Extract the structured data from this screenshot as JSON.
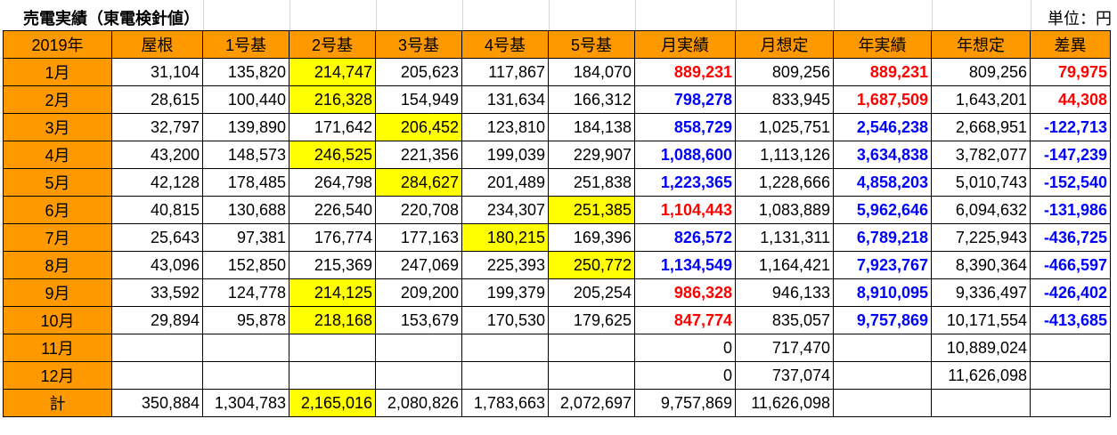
{
  "title": "売電実績（東電検針値）",
  "unit_label": "単位：円",
  "colors": {
    "header_bg": "#ff9900",
    "highlight": "#ffff00",
    "positive": "#ff0000",
    "negative": "#0000ff"
  },
  "columns": [
    "2019年",
    "屋根",
    "1号基",
    "2号基",
    "3号基",
    "4号基",
    "5号基",
    "月実績",
    "月想定",
    "年実績",
    "年想定",
    "差異"
  ],
  "rows": [
    {
      "month": "1月",
      "cells": [
        "31,104",
        "135,820",
        "214,747",
        "205,623",
        "117,867",
        "184,070",
        "889,231",
        "809,256",
        "889,231",
        "809,256",
        "79,975"
      ],
      "hl": 2,
      "c": [
        "red",
        "red",
        "red"
      ]
    },
    {
      "month": "2月",
      "cells": [
        "28,615",
        "100,440",
        "216,328",
        "154,949",
        "131,634",
        "166,312",
        "798,278",
        "833,945",
        "1,687,509",
        "1,643,201",
        "44,308"
      ],
      "hl": 2,
      "c": [
        "blue",
        "red",
        "red"
      ]
    },
    {
      "month": "3月",
      "cells": [
        "32,797",
        "139,890",
        "171,642",
        "206,452",
        "123,810",
        "184,138",
        "858,729",
        "1,025,751",
        "2,546,238",
        "2,668,951",
        "-122,713"
      ],
      "hl": 3,
      "c": [
        "blue",
        "blue",
        "blue"
      ]
    },
    {
      "month": "4月",
      "cells": [
        "43,200",
        "148,573",
        "246,525",
        "221,356",
        "199,039",
        "229,907",
        "1,088,600",
        "1,113,126",
        "3,634,838",
        "3,782,077",
        "-147,239"
      ],
      "hl": 2,
      "c": [
        "blue",
        "blue",
        "blue"
      ]
    },
    {
      "month": "5月",
      "cells": [
        "42,128",
        "178,485",
        "264,798",
        "284,627",
        "201,489",
        "251,838",
        "1,223,365",
        "1,228,666",
        "4,858,203",
        "5,010,743",
        "-152,540"
      ],
      "hl": 3,
      "c": [
        "blue",
        "blue",
        "blue"
      ]
    },
    {
      "month": "6月",
      "cells": [
        "40,815",
        "130,688",
        "226,540",
        "220,708",
        "234,307",
        "251,385",
        "1,104,443",
        "1,083,889",
        "5,962,646",
        "6,094,632",
        "-131,986"
      ],
      "hl": 5,
      "c": [
        "red",
        "blue",
        "blue"
      ]
    },
    {
      "month": "7月",
      "cells": [
        "25,643",
        "97,381",
        "176,774",
        "177,163",
        "180,215",
        "169,396",
        "826,572",
        "1,131,311",
        "6,789,218",
        "7,225,943",
        "-436,725"
      ],
      "hl": 4,
      "c": [
        "blue",
        "blue",
        "blue"
      ]
    },
    {
      "month": "8月",
      "cells": [
        "43,096",
        "152,850",
        "215,369",
        "247,069",
        "225,393",
        "250,772",
        "1,134,549",
        "1,164,421",
        "7,923,767",
        "8,390,364",
        "-466,597"
      ],
      "hl": 5,
      "c": [
        "blue",
        "blue",
        "blue"
      ]
    },
    {
      "month": "9月",
      "cells": [
        "33,592",
        "124,778",
        "214,125",
        "209,200",
        "199,379",
        "205,254",
        "986,328",
        "946,133",
        "8,910,095",
        "9,336,497",
        "-426,402"
      ],
      "hl": 2,
      "c": [
        "red",
        "blue",
        "blue"
      ]
    },
    {
      "month": "10月",
      "cells": [
        "29,894",
        "95,878",
        "218,168",
        "153,679",
        "170,530",
        "179,625",
        "847,774",
        "835,057",
        "9,757,869",
        "10,171,554",
        "-413,685"
      ],
      "hl": 2,
      "c": [
        "red",
        "blue",
        "blue"
      ]
    },
    {
      "month": "11月",
      "cells": [
        "",
        "",
        "",
        "",
        "",
        "",
        "0",
        "717,470",
        "",
        "10,889,024",
        ""
      ],
      "hl": -1,
      "c": [
        "",
        "",
        ""
      ]
    },
    {
      "month": "12月",
      "cells": [
        "",
        "",
        "",
        "",
        "",
        "",
        "0",
        "737,074",
        "",
        "11,626,098",
        ""
      ],
      "hl": -1,
      "c": [
        "",
        "",
        ""
      ]
    },
    {
      "month": "計",
      "cells": [
        "350,884",
        "1,304,783",
        "2,165,016",
        "2,080,826",
        "1,783,663",
        "2,072,697",
        "9,757,869",
        "11,626,098",
        "",
        "",
        ""
      ],
      "hl": 2,
      "c": [
        "",
        "",
        ""
      ]
    }
  ]
}
